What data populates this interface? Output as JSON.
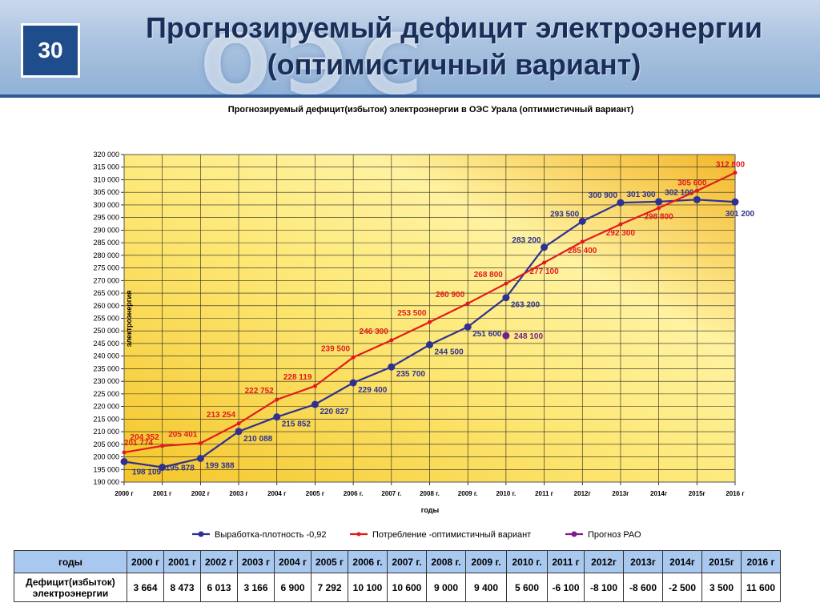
{
  "slide": {
    "number": "30",
    "title_line1": "Прогнозируемый дефицит электроэнергии",
    "title_line2": "(оптимистичный вариант)"
  },
  "chart_data": {
    "type": "line",
    "title": "Прогнозируемый дефицит(избыток) электроэнергии в ОЭС Урала (оптимистичный вариант)",
    "xlabel": "годы",
    "ylabel": "электроэнергия",
    "ylim": [
      190000,
      320000
    ],
    "ytick_step": 5000,
    "categories": [
      "2000 г",
      "2001 г",
      "2002 г",
      "2003 г",
      "2004 г",
      "2005 г",
      "2006 г.",
      "2007 г.",
      "2008 г.",
      "2009 г.",
      "2010 г.",
      "2011 г",
      "2012г",
      "2013г",
      "2014г",
      "2015г",
      "2016 г"
    ],
    "grid": true,
    "legend_position": "bottom",
    "background": "gold-gradient",
    "series": [
      {
        "name": "Выработка-плотность -0,92",
        "color": "#2e3191",
        "marker": "circle",
        "values": [
          198109,
          195878,
          199388,
          210088,
          215852,
          220827,
          229400,
          235700,
          244500,
          251600,
          263200,
          283200,
          293500,
          300900,
          301300,
          302100,
          301200
        ],
        "labels": [
          "198 109",
          "195 878",
          "199 388",
          "210 088",
          "215 852",
          "220 827",
          "229 400",
          "235 700",
          "244 500",
          "251 600",
          "263 200",
          "283 200",
          "293 500",
          "300 900",
          "301 300",
          "302 100",
          "301 200"
        ]
      },
      {
        "name": "Потребление -оптимистичный вариант",
        "color": "#e31a1c",
        "marker": "dot",
        "values": [
          201774,
          204352,
          205401,
          213254,
          222752,
          228119,
          239500,
          246300,
          253500,
          260900,
          268800,
          277100,
          285400,
          292300,
          298800,
          305600,
          312800
        ],
        "labels": [
          "201 774",
          "204 352",
          "205 401",
          "213 254",
          "222 752",
          "228 119",
          "239 500",
          "246 300",
          "253 500",
          "260 900",
          "268 800",
          "277 100",
          "285 400",
          "292 300",
          "298 800",
          "305 600",
          "312 800"
        ]
      },
      {
        "name": "Прогноз РАО",
        "color": "#7b1c8c",
        "marker": "circle",
        "values": [
          null,
          null,
          null,
          null,
          null,
          null,
          null,
          null,
          null,
          null,
          248100,
          null,
          null,
          null,
          null,
          null,
          null
        ],
        "labels": [
          null,
          null,
          null,
          null,
          null,
          null,
          null,
          null,
          null,
          null,
          "248 100",
          null,
          null,
          null,
          null,
          null,
          null
        ]
      }
    ]
  },
  "table": {
    "header_label": "годы",
    "row_label_line1": "Дефицит(избыток)",
    "row_label_line2": "электроэнергии",
    "years": [
      "2000 г",
      "2001 г",
      "2002 г",
      "2003 г",
      "2004 г",
      "2005 г",
      "2006 г.",
      "2007 г.",
      "2008 г.",
      "2009 г.",
      "2010 г.",
      "2011 г",
      "2012г",
      "2013г",
      "2014г",
      "2015г",
      "2016 г"
    ],
    "values": [
      "3 664",
      "8 473",
      "6 013",
      "3 166",
      "6 900",
      "7 292",
      "10 100",
      "10 600",
      "9 000",
      "9 400",
      "5 600",
      "-6 100",
      "-8 100",
      "-8 600",
      "-2 500",
      "3 500",
      "11 600"
    ]
  }
}
